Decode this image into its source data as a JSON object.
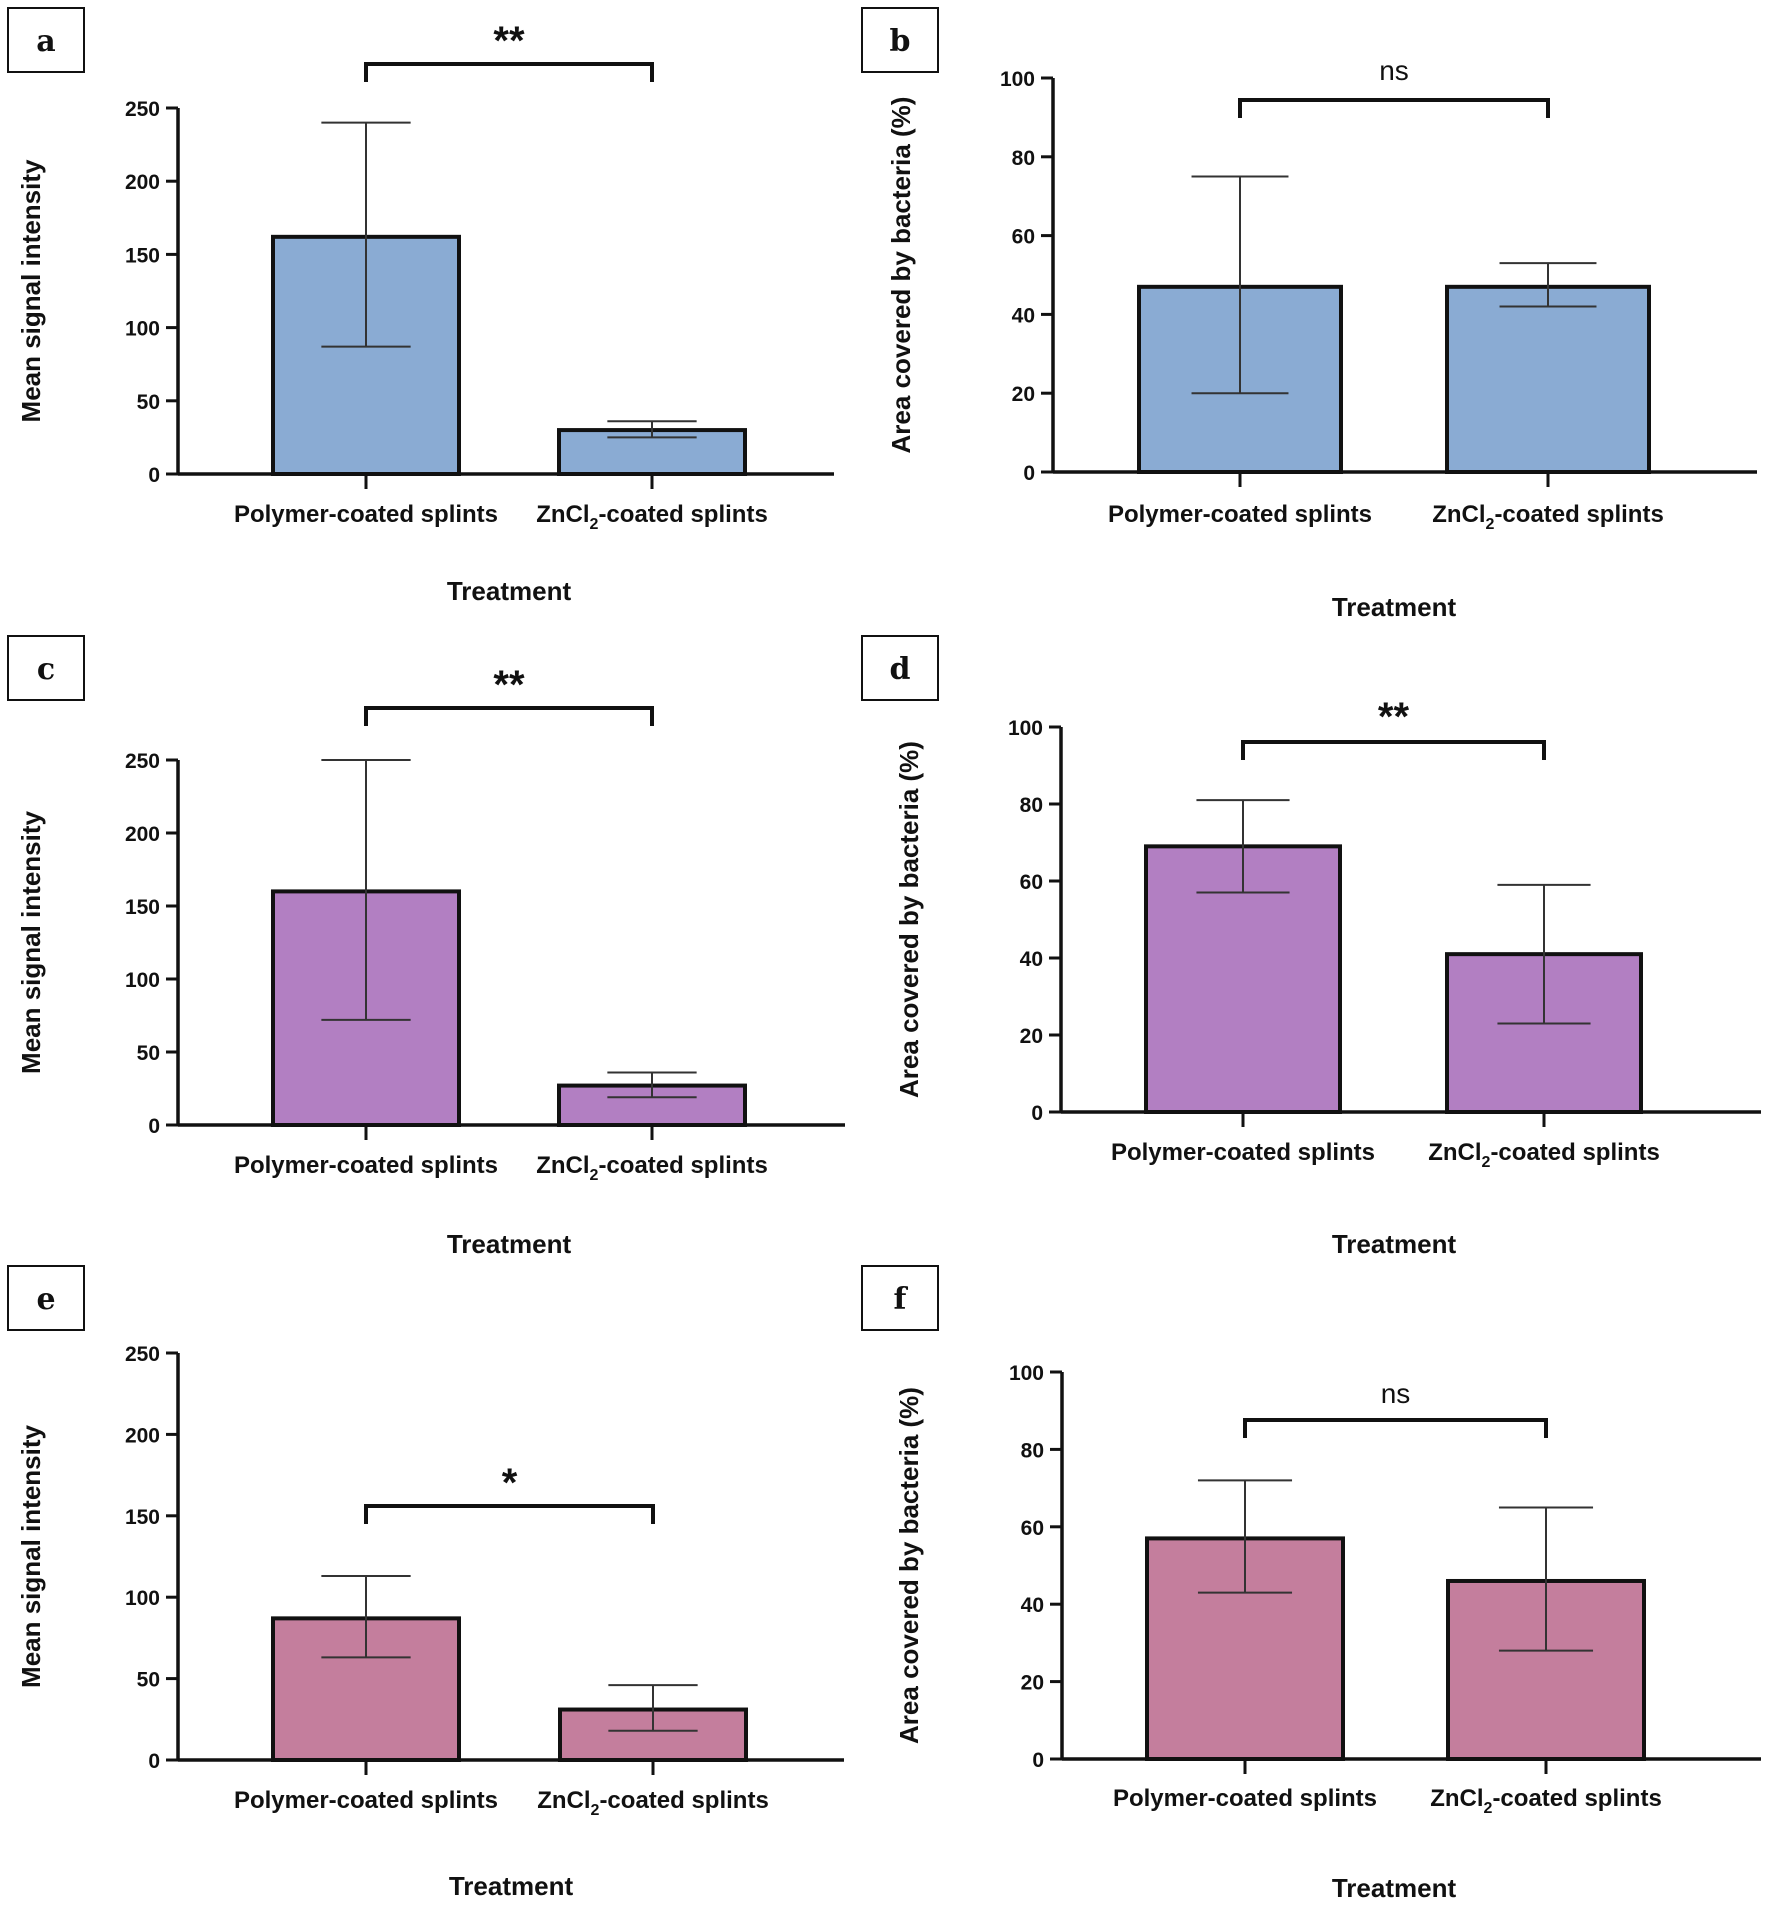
{
  "chart_data": [
    {
      "panel": "a",
      "type": "bar",
      "categories": [
        "Polymer-coated splints",
        "ZnCl2-coated splints"
      ],
      "values": [
        162,
        30
      ],
      "error_low": [
        87,
        25
      ],
      "error_high": [
        240,
        36
      ],
      "ylabel": "Mean signal intensity",
      "xlabel": "Treatment",
      "ylim": [
        0,
        250
      ],
      "yticks": [
        0,
        50,
        100,
        150,
        200,
        250
      ],
      "significance": "**",
      "color": "#8aabd3"
    },
    {
      "panel": "b",
      "type": "bar",
      "categories": [
        "Polymer-coated splints",
        "ZnCl2-coated splints"
      ],
      "values": [
        47,
        47
      ],
      "error_low": [
        20,
        42
      ],
      "error_high": [
        75,
        53
      ],
      "ylabel": "Area covered by bacteria (%)",
      "xlabel": "Treatment",
      "ylim": [
        0,
        100
      ],
      "yticks": [
        0,
        20,
        40,
        60,
        80,
        100
      ],
      "significance": "ns",
      "color": "#8aabd3"
    },
    {
      "panel": "c",
      "type": "bar",
      "categories": [
        "Polymer-coated splints",
        "ZnCl2-coated splints"
      ],
      "values": [
        160,
        27
      ],
      "error_low": [
        72,
        19
      ],
      "error_high": [
        250,
        36
      ],
      "ylabel": "Mean signal intensity",
      "xlabel": "Treatment",
      "ylim": [
        0,
        250
      ],
      "yticks": [
        0,
        50,
        100,
        150,
        200,
        250
      ],
      "significance": "**",
      "color": "#b27fc2"
    },
    {
      "panel": "d",
      "type": "bar",
      "categories": [
        "Polymer-coated splints",
        "ZnCl2-coated splints"
      ],
      "values": [
        69,
        41
      ],
      "error_low": [
        57,
        23
      ],
      "error_high": [
        81,
        59
      ],
      "ylabel": "Area covered by bacteria (%)",
      "xlabel": "Treatment",
      "ylim": [
        0,
        100
      ],
      "yticks": [
        0,
        20,
        40,
        60,
        80,
        100
      ],
      "significance": "**",
      "color": "#b27fc2"
    },
    {
      "panel": "e",
      "type": "bar",
      "categories": [
        "Polymer-coated splints",
        "ZnCl2-coated splints"
      ],
      "values": [
        87,
        31
      ],
      "error_low": [
        63,
        18
      ],
      "error_high": [
        113,
        46
      ],
      "ylabel": "Mean signal intensity",
      "xlabel": "Treatment",
      "ylim": [
        0,
        250
      ],
      "yticks": [
        0,
        50,
        100,
        150,
        200,
        250
      ],
      "significance": "*",
      "color": "#c47e9d"
    },
    {
      "panel": "f",
      "type": "bar",
      "categories": [
        "Polymer-coated splints",
        "ZnCl2-coated splints"
      ],
      "values": [
        57,
        46
      ],
      "error_low": [
        43,
        28
      ],
      "error_high": [
        72,
        65
      ],
      "ylabel": "Area covered by bacteria (%)",
      "xlabel": "Treatment",
      "ylim": [
        0,
        100
      ],
      "yticks": [
        0,
        20,
        40,
        60,
        80,
        100
      ],
      "significance": "ns",
      "color": "#c47e9d"
    }
  ]
}
